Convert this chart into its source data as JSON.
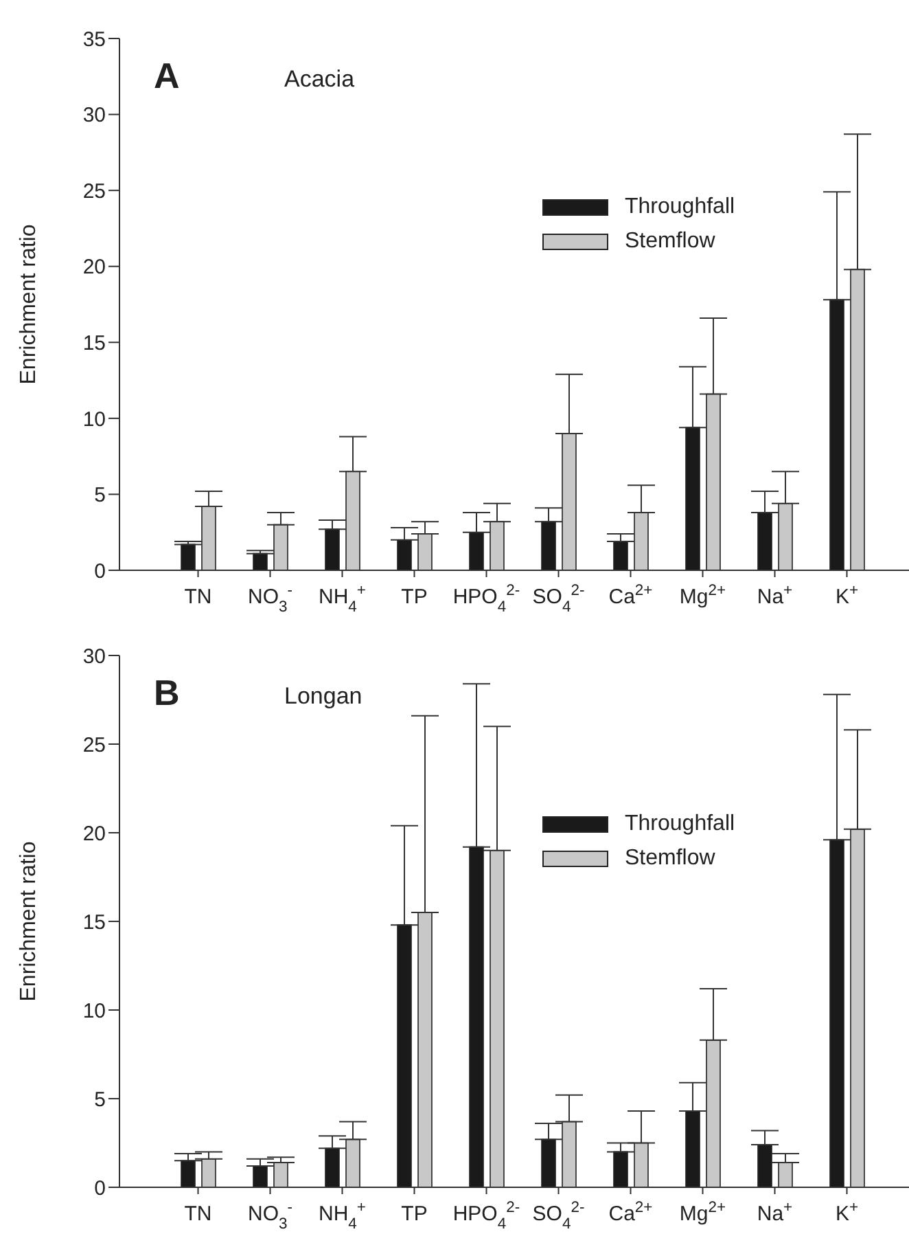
{
  "chart_data": [
    {
      "type": "bar",
      "title": "A",
      "subtitle": "Acacia",
      "ylabel": "Enrichment ratio",
      "categories": [
        "TN",
        "NO$_{3}$$^{-}$",
        "NH$_{4}$$^{+}$",
        "TP",
        "HPO$_{4}$$^{2-}$",
        "SO$_{4}$$^{2-}$",
        "Ca$^{2+}$",
        "Mg$^{2+}$",
        "Na$^{+}$",
        "K$^{+}$"
      ],
      "series": [
        {
          "name": "Throughfall",
          "color": "#1a1a1a",
          "values": [
            1.7,
            1.1,
            2.7,
            2.0,
            2.5,
            3.2,
            1.9,
            9.4,
            3.8,
            17.8
          ],
          "errors": [
            [
              1.7,
              1.9
            ],
            [
              1.1,
              1.3
            ],
            [
              2.7,
              3.3
            ],
            [
              2.0,
              2.8
            ],
            [
              2.5,
              3.8
            ],
            [
              3.2,
              4.1
            ],
            [
              1.9,
              2.4
            ],
            [
              9.4,
              13.4
            ],
            [
              3.8,
              5.2
            ],
            [
              17.8,
              24.9
            ]
          ]
        },
        {
          "name": "Stemflow",
          "color": "#c8c8c8",
          "values": [
            4.2,
            3.0,
            6.5,
            2.4,
            3.2,
            9.0,
            3.8,
            11.6,
            4.4,
            19.8
          ],
          "errors": [
            [
              4.2,
              5.2
            ],
            [
              3.0,
              3.8
            ],
            [
              6.5,
              8.8
            ],
            [
              2.4,
              3.2
            ],
            [
              3.2,
              4.4
            ],
            [
              9.0,
              12.9
            ],
            [
              3.8,
              5.6
            ],
            [
              11.6,
              16.6
            ],
            [
              4.4,
              6.5
            ],
            [
              19.8,
              28.7
            ]
          ]
        }
      ],
      "ylim": [
        0,
        35
      ],
      "yticks": [
        0,
        5,
        10,
        15,
        20,
        25,
        30,
        35
      ],
      "legend": "top right"
    },
    {
      "type": "bar",
      "title": "B",
      "subtitle": "Longan",
      "ylabel": "Enrichment ratio",
      "categories": [
        "TN",
        "NO$_{3}$$^{-}$",
        "NH$_{4}$$^{+}$",
        "TP",
        "HPO$_{4}$$^{2-}$",
        "SO$_{4}$$^{2-}$",
        "Ca$^{2+}$",
        "Mg$^{2+}$",
        "Na$^{+}$",
        "K$^{+}$"
      ],
      "series": [
        {
          "name": "Throughfall",
          "color": "#1a1a1a",
          "values": [
            1.5,
            1.2,
            2.2,
            14.8,
            19.2,
            2.7,
            2.0,
            4.3,
            2.4,
            19.6
          ],
          "errors": [
            [
              1.5,
              1.9
            ],
            [
              1.2,
              1.6
            ],
            [
              2.2,
              2.9
            ],
            [
              14.8,
              20.4
            ],
            [
              19.2,
              28.4
            ],
            [
              2.7,
              3.6
            ],
            [
              2.0,
              2.5
            ],
            [
              4.3,
              5.9
            ],
            [
              2.4,
              3.2
            ],
            [
              19.6,
              27.8
            ]
          ]
        },
        {
          "name": "Stemflow",
          "color": "#c8c8c8",
          "values": [
            1.6,
            1.4,
            2.7,
            15.5,
            19.0,
            3.7,
            2.5,
            8.3,
            1.4,
            20.2
          ],
          "errors": [
            [
              1.6,
              2.0
            ],
            [
              1.4,
              1.7
            ],
            [
              2.7,
              3.7
            ],
            [
              15.5,
              26.6
            ],
            [
              19.0,
              26.0
            ],
            [
              3.7,
              5.2
            ],
            [
              2.5,
              4.3
            ],
            [
              8.3,
              11.2
            ],
            [
              1.4,
              1.9
            ],
            [
              20.2,
              25.8
            ]
          ]
        }
      ],
      "ylim": [
        0,
        30
      ],
      "yticks": [
        0,
        5,
        10,
        15,
        20,
        25,
        30
      ],
      "legend": "top right"
    }
  ]
}
